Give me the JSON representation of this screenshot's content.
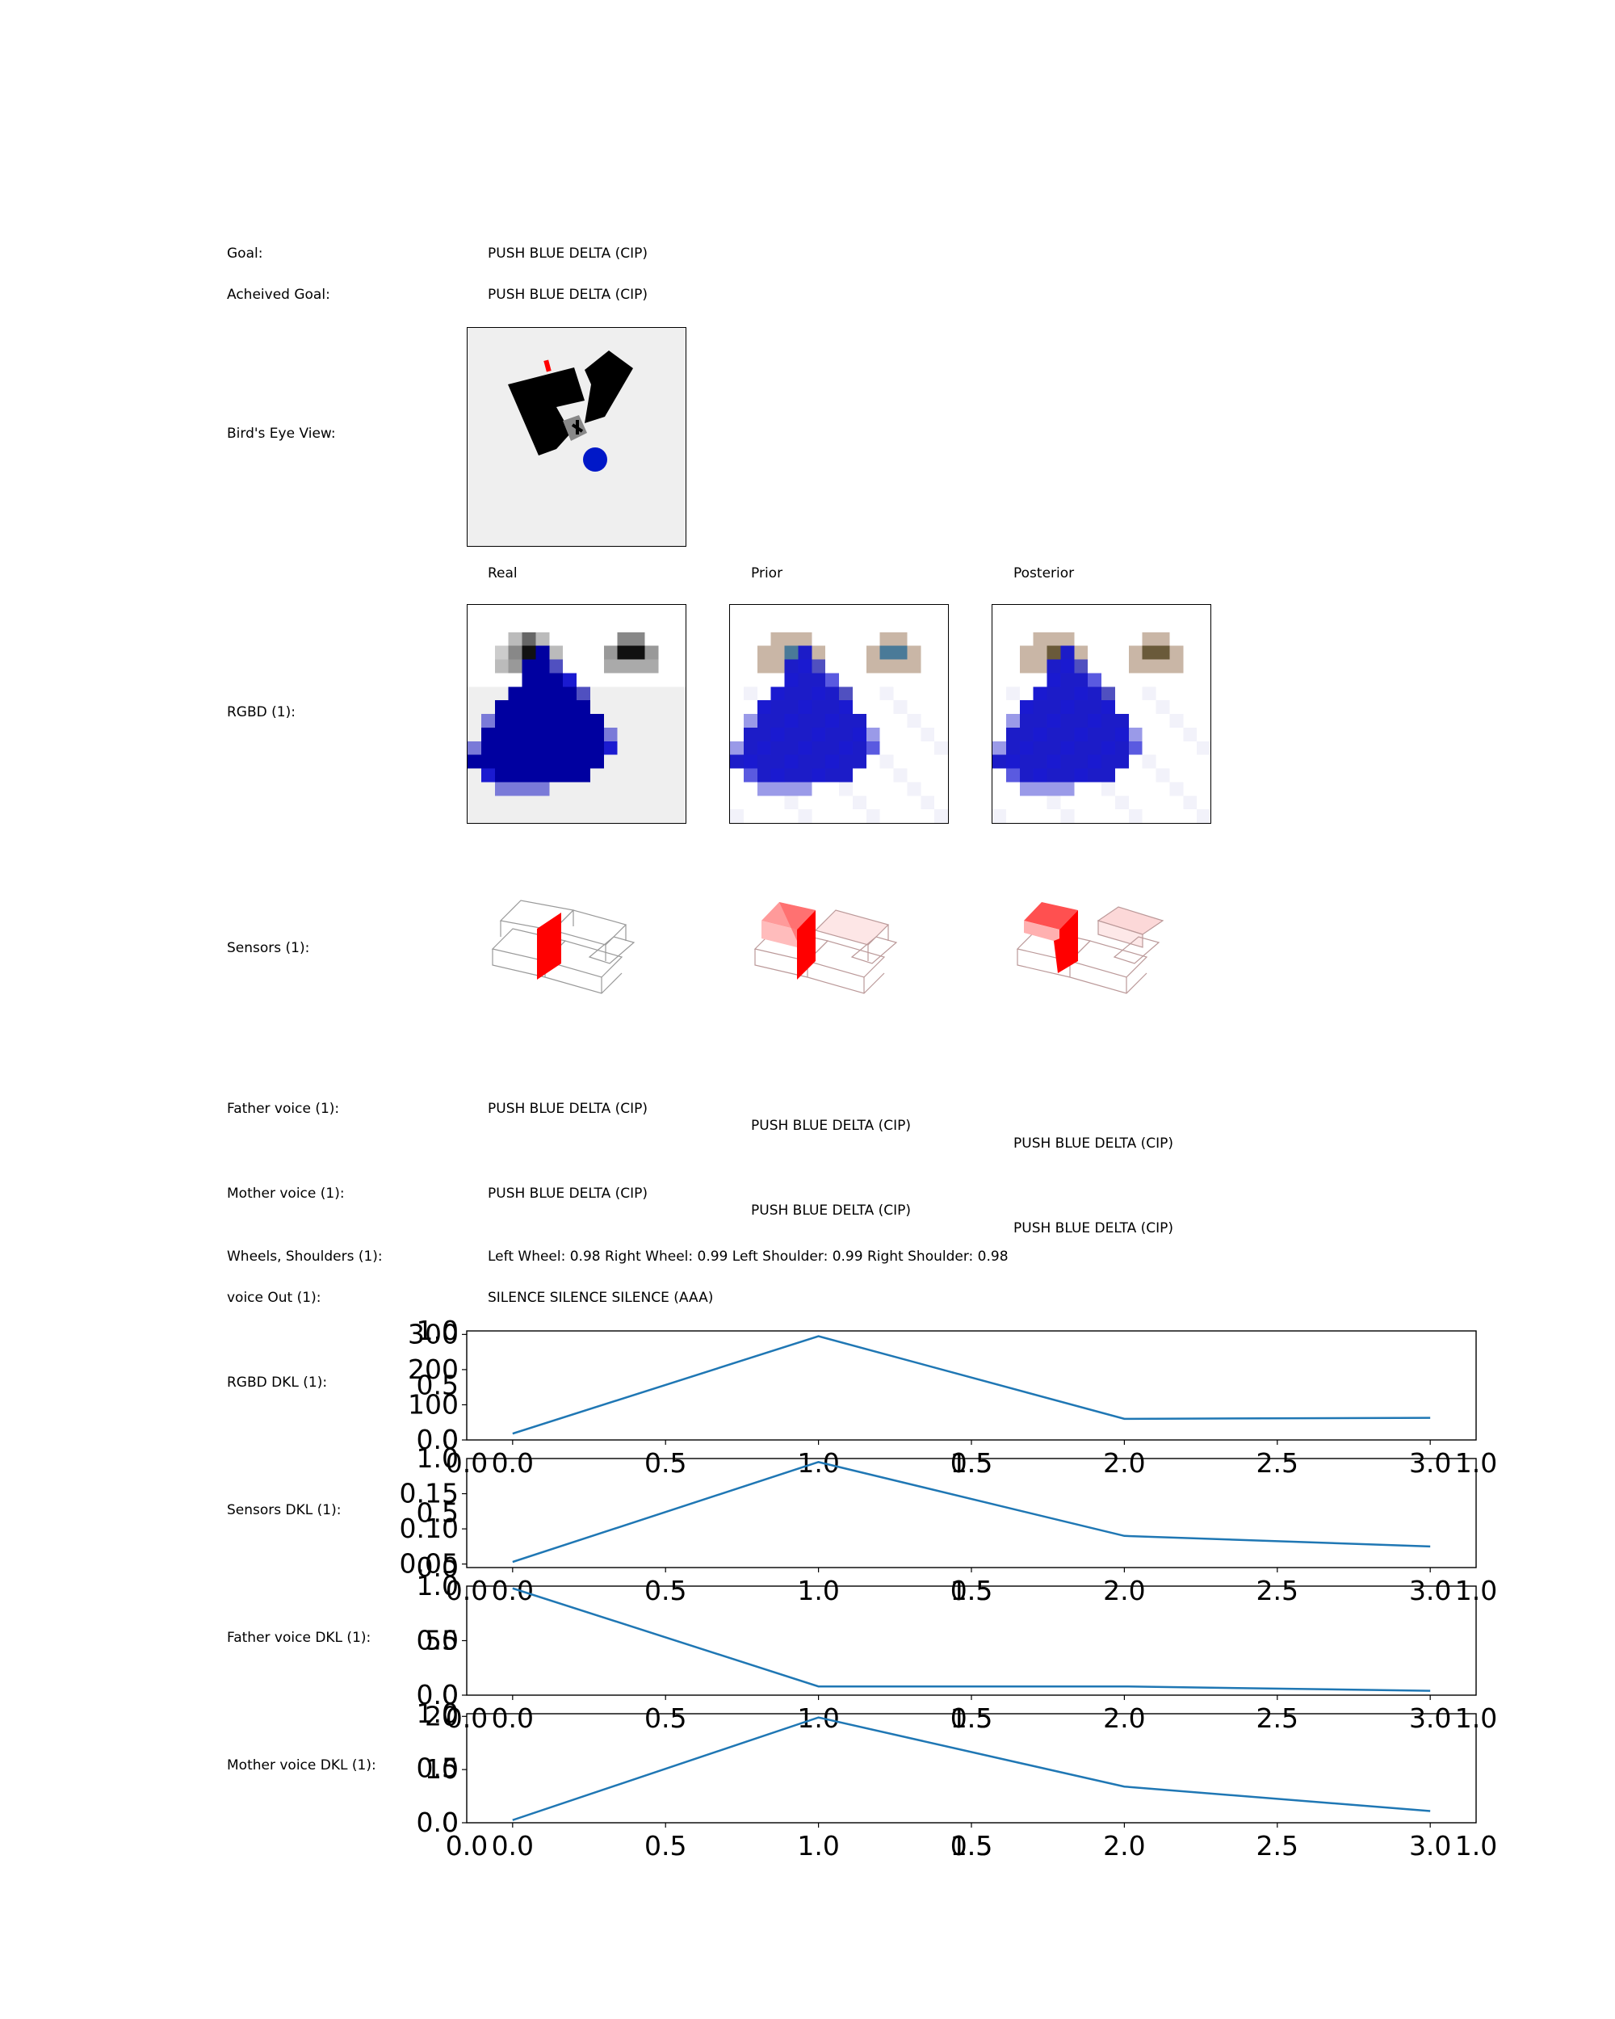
{
  "rows": {
    "goal_label": "Goal:",
    "goal_value": "PUSH BLUE DELTA (CIP)",
    "achieved_label": "Acheived Goal:",
    "achieved_value": "PUSH BLUE DELTA (CIP)",
    "birds_eye_label": "Bird's Eye View:",
    "col_real": "Real",
    "col_prior": "Prior",
    "col_posterior": "Posterior",
    "rgbd_label": "RGBD (1):",
    "sensors_label": "Sensors (1):",
    "father_label": "Father voice (1):",
    "father_real": "PUSH BLUE DELTA (CIP)",
    "father_prior": "PUSH BLUE DELTA (CIP)",
    "father_posterior": "PUSH BLUE DELTA (CIP)",
    "mother_label": "Mother voice (1):",
    "mother_real": "PUSH BLUE DELTA (CIP)",
    "mother_prior": "PUSH BLUE DELTA (CIP)",
    "mother_posterior": "PUSH BLUE DELTA (CIP)",
    "wheels_label": "Wheels, Shoulders (1):",
    "wheels_value": "Left Wheel: 0.98 Right Wheel: 0.99 Left Shoulder: 0.99 Right Shoulder: 0.98",
    "voice_out_label": "voice Out (1):",
    "voice_out_value": "SILENCE SILENCE SILENCE (AAA)",
    "rgbd_dkl_label": "RGBD DKL (1):",
    "sensors_dkl_label": "Sensors DKL (1):",
    "father_dkl_label": "Father voice DKL (1):",
    "mother_dkl_label": "Mother voice DKL (1):"
  },
  "colors": {
    "line": "#1f77b4",
    "blue_dark": "#0000a0",
    "red": "#ff0000",
    "arena_bg": "#f0f0f0"
  },
  "chart_data": [
    {
      "type": "line",
      "name": "RGBD DKL (1):",
      "x": [
        0,
        1,
        2,
        3
      ],
      "y": [
        18,
        295,
        60,
        63
      ],
      "xlim": [
        -0.15,
        3.15
      ],
      "ylim": [
        0,
        310
      ],
      "yticks": [
        0,
        100,
        200,
        300
      ],
      "overlay_yticks": [
        "0.0",
        "0.5",
        "1.0"
      ],
      "xticks": [
        "0.0",
        "0.5",
        "1.0",
        "1.5",
        "2.0",
        "2.5",
        "3.0"
      ],
      "overlay_xticks": [
        "0.0",
        "0.5",
        "1.0"
      ],
      "show_xticks": true
    },
    {
      "type": "line",
      "name": "Sensors DKL (1):",
      "x": [
        0,
        1,
        2,
        3
      ],
      "y": [
        0.053,
        0.195,
        0.09,
        0.075
      ],
      "xlim": [
        -0.15,
        3.15
      ],
      "ylim": [
        0.045,
        0.2
      ],
      "yticks": [
        0.05,
        0.1,
        0.15
      ],
      "ytick_labels": [
        "0.05",
        "0.10",
        "0.15"
      ],
      "overlay_yticks": [
        "0.0",
        "0.5",
        "1.0"
      ],
      "xticks": [
        "0.0",
        "0.5",
        "1.0",
        "1.5",
        "2.0",
        "2.5",
        "3.0"
      ],
      "overlay_xticks": [
        "0.0",
        "0.5",
        "1.0"
      ],
      "show_xticks": true
    },
    {
      "type": "line",
      "name": "Father voice DKL (1):",
      "x": [
        0,
        1,
        2,
        3
      ],
      "y": [
        98,
        8,
        8,
        4
      ],
      "xlim": [
        -0.15,
        3.15
      ],
      "ylim": [
        0,
        100
      ],
      "yticks": [
        0,
        50
      ],
      "overlay_yticks": [
        "0.0",
        "0.5",
        "1.0"
      ],
      "xticks": [
        "0.0",
        "0.5",
        "1.0",
        "1.5",
        "2.0",
        "2.5",
        "3.0"
      ],
      "overlay_xticks": [
        "0.0",
        "0.5",
        "1.0"
      ],
      "show_xticks": true
    },
    {
      "type": "line",
      "name": "Mother voice DKL (1):",
      "x": [
        0,
        1,
        2,
        3
      ],
      "y": [
        0.5,
        19.8,
        6.8,
        2.2
      ],
      "xlim": [
        -0.15,
        3.15
      ],
      "ylim": [
        0,
        20.5
      ],
      "yticks": [
        0,
        10,
        20
      ],
      "overlay_yticks": [
        "0.0",
        "0.5",
        "1.0"
      ],
      "xticks": [
        "0.0",
        "0.5",
        "1.0",
        "1.5",
        "2.0",
        "2.5",
        "3.0"
      ],
      "overlay_xticks": [
        "0.0",
        "0.5",
        "1.0"
      ],
      "show_xticks": true
    }
  ]
}
